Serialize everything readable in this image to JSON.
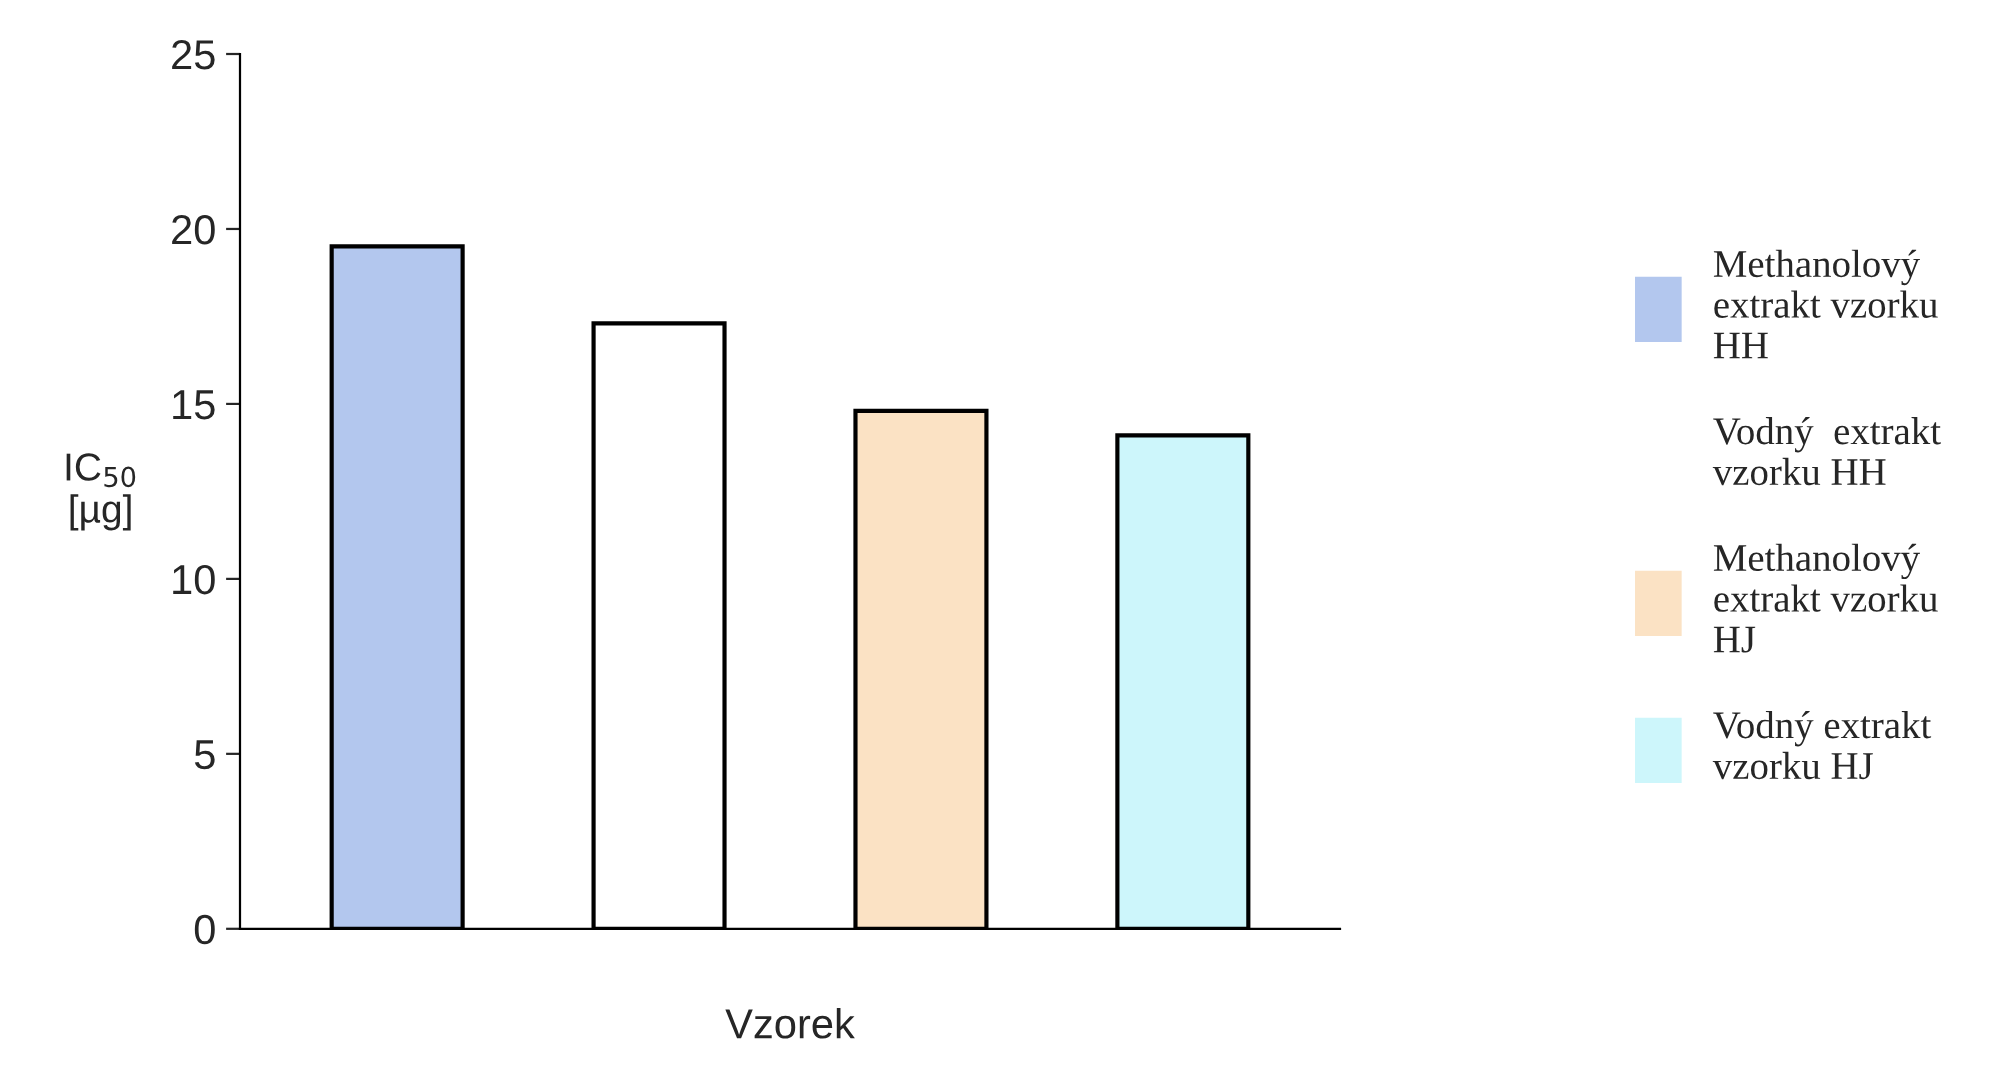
{
  "chart_data": {
    "type": "bar",
    "xlabel": "Vzorek",
    "ylabel": "IC$_{50}$\n[µg]",
    "categories": [
      null,
      null,
      null,
      null
    ],
    "series": [
      {
        "name": "Methanolový\nextrakt vzorku\nHH",
        "color": "#b3c7ee",
        "values": [
          19.5,
          null,
          null,
          null
        ]
      },
      {
        "name": "Vodný  extrakt\nvzorku HH",
        "color": "#ffffff",
        "values": [
          null,
          17.3,
          null,
          null
        ]
      },
      {
        "name": "Methanolový\nextrakt vzorku\nHJ",
        "color": "#fbe2c4",
        "values": [
          null,
          null,
          14.8,
          null
        ]
      },
      {
        "name": "Vodný extrakt\nvzorku HJ",
        "color": "#cdf6fb",
        "values": [
          null,
          null,
          null,
          14.1
        ]
      }
    ],
    "ylim": [
      0,
      25
    ],
    "yticks": [
      0,
      5,
      10,
      15,
      20,
      25
    ],
    "grid": false,
    "legend": "right"
  }
}
